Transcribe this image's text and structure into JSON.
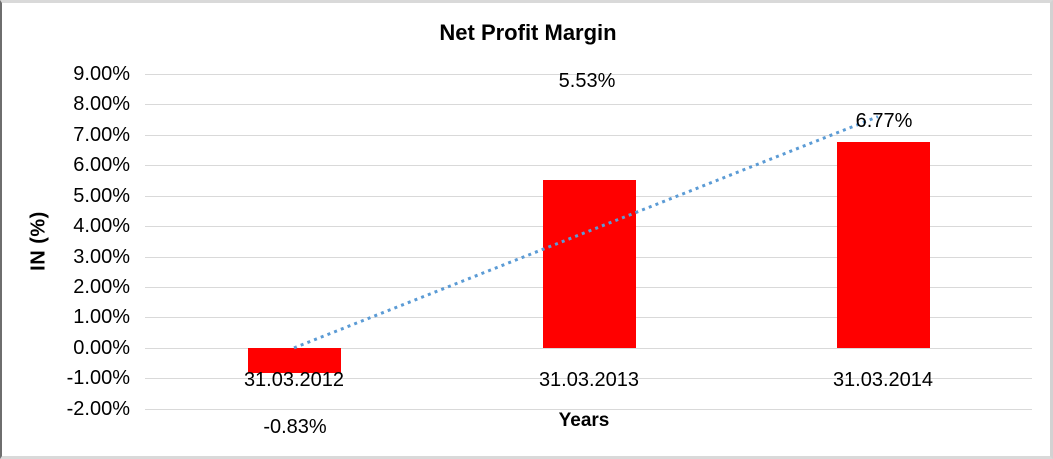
{
  "chart_data": {
    "type": "bar",
    "title": "Net Profit Margin",
    "xlabel": "Years",
    "ylabel": "IN (%)",
    "categories": [
      "31.03.2012",
      "31.03.2013",
      "31.03.2014"
    ],
    "values": [
      -0.83,
      5.53,
      6.77
    ],
    "data_labels": [
      "-0.83%",
      "5.53%",
      "6.77%"
    ],
    "ytick_labels": [
      "9.00%",
      "8.00%",
      "7.00%",
      "6.00%",
      "5.00%",
      "4.00%",
      "3.00%",
      "2.00%",
      "1.00%",
      "0.00%",
      "-1.00%",
      "-2.00%"
    ],
    "ytick_values": [
      9,
      8,
      7,
      6,
      5,
      4,
      3,
      2,
      1,
      0,
      -1,
      -2
    ],
    "ylim": [
      -2,
      9
    ],
    "grid": true,
    "legend": false,
    "bar_color": "#ff0000",
    "gridline_color": "#d9d9d9",
    "trendline": {
      "type": "linear",
      "style": "dotted",
      "color": "#5b9bd5",
      "start_value_pct": 0.0,
      "end_value_pct": 7.6
    }
  }
}
